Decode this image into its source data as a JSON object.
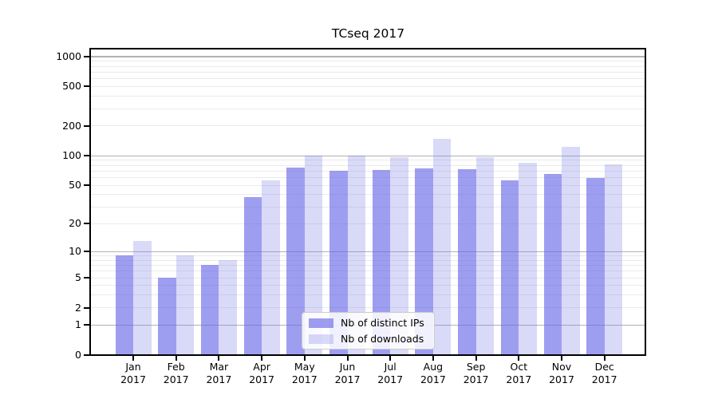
{
  "chart_data": {
    "type": "bar",
    "title": "TCseq 2017",
    "categories": [
      "Jan",
      "Feb",
      "Mar",
      "Apr",
      "May",
      "Jun",
      "Jul",
      "Aug",
      "Sep",
      "Oct",
      "Nov",
      "Dec"
    ],
    "category_year": "2017",
    "series": [
      {
        "name": "Nb of distinct IPs",
        "fill": "rgba(98,98,232,0.62)",
        "values": [
          9,
          5,
          7,
          38,
          76,
          70,
          72,
          75,
          73,
          56,
          65,
          59
        ]
      },
      {
        "name": "Nb of downloads",
        "fill": "rgba(119,119,229,0.28)",
        "values": [
          13,
          9,
          8,
          56,
          100,
          100,
          96,
          149,
          96,
          85,
          124,
          82
        ]
      }
    ],
    "y_axis": {
      "scale": "log10(value+1)",
      "tick_labels": [
        0,
        1,
        2,
        5,
        10,
        20,
        50,
        100,
        200,
        500,
        1000
      ],
      "range": [
        0,
        1200
      ],
      "major_gridlines": [
        1,
        10,
        100,
        1000
      ],
      "minor_gridlines": [
        2,
        3,
        4,
        5,
        6,
        7,
        8,
        9,
        20,
        30,
        40,
        50,
        60,
        70,
        80,
        90,
        200,
        300,
        400,
        500,
        600,
        700,
        800,
        900
      ]
    },
    "x_axis": {
      "tick_label_lines": 2
    },
    "legend": {
      "position": "lower-center-inside"
    },
    "grid": true,
    "colors": {
      "background": "#ffffff",
      "major_gridline": "#b2b2b2",
      "minor_gridline": "#ebebeb",
      "axis": "#000000",
      "text": "#000000",
      "legend_border": "#cccccc"
    }
  }
}
